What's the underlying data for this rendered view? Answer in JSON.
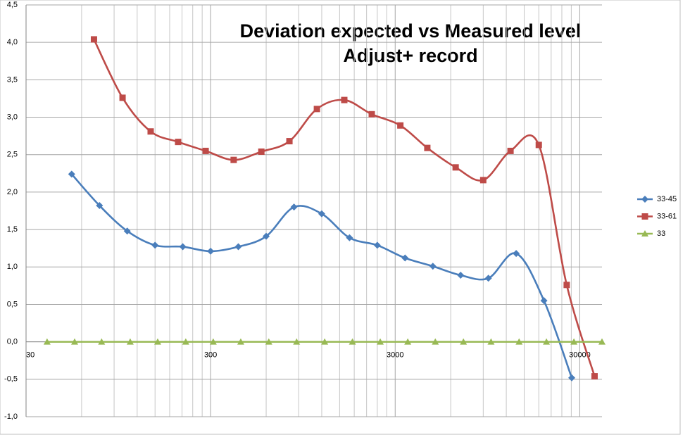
{
  "chart_data": {
    "type": "line",
    "title": [
      "Deviation expected vs Measured level",
      "Adjust+ record"
    ],
    "xscale": "log",
    "xlim": [
      30,
      39600
    ],
    "xticks": [
      30,
      300,
      3000,
      30000
    ],
    "xminor_grid": true,
    "ylim": [
      -1.0,
      4.5
    ],
    "yticks": [
      {
        "value": -1.0,
        "label": "-1,0"
      },
      {
        "value": -0.5,
        "label": "-0,5"
      },
      {
        "value": 0,
        "label": "0,0"
      },
      {
        "value": 0.5,
        "label": "0,5"
      },
      {
        "value": 1.0,
        "label": "1,0"
      },
      {
        "value": 1.5,
        "label": "1,5"
      },
      {
        "value": 2.0,
        "label": "2,0"
      },
      {
        "value": 2.5,
        "label": "2,5"
      },
      {
        "value": 3.0,
        "label": "3,0"
      },
      {
        "value": 3.5,
        "label": "3,5"
      },
      {
        "value": 4.0,
        "label": "4,0"
      },
      {
        "value": 4.5,
        "label": "4,5"
      }
    ],
    "grid": true,
    "smooth": true,
    "legend": "right",
    "series": [
      {
        "name": "33-45",
        "color": "#4a7ebb",
        "marker": "diamond",
        "x": [
          53,
          75,
          106,
          150,
          212,
          300,
          424,
          600,
          849,
          1200,
          1697,
          2400,
          3394,
          4800,
          6788,
          9600,
          13576,
          19200,
          27153
        ],
        "values": [
          2.24,
          1.82,
          1.48,
          1.29,
          1.27,
          1.21,
          1.27,
          1.41,
          1.8,
          1.71,
          1.39,
          1.29,
          1.12,
          1.01,
          0.89,
          0.85,
          1.18,
          0.55,
          -0.48
        ]
      },
      {
        "name": "33-61",
        "color": "#be4b48",
        "marker": "square",
        "x": [
          70,
          100,
          142,
          200,
          282,
          400,
          565,
          802,
          1130,
          1590,
          2240,
          3200,
          4480,
          6380,
          9000,
          12650,
          18000,
          25500,
          36100
        ],
        "values": [
          4.04,
          3.26,
          2.81,
          2.67,
          2.55,
          2.43,
          2.54,
          2.68,
          3.11,
          3.23,
          3.04,
          2.89,
          2.59,
          2.33,
          2.16,
          2.55,
          2.63,
          0.76,
          -0.46
        ]
      },
      {
        "name": "33",
        "color": "#98b954",
        "marker": "triangle",
        "x": [
          39,
          55,
          77,
          110,
          155,
          220,
          310,
          437,
          620,
          877,
          1245,
          1760,
          2490,
          3510,
          4950,
          7030,
          9920,
          14080,
          19800,
          27900,
          39600
        ],
        "values": [
          0,
          0,
          0,
          0,
          0,
          0,
          0,
          0,
          0,
          0,
          0,
          0,
          0,
          0,
          0,
          0,
          0,
          0,
          0,
          0,
          0
        ]
      }
    ]
  }
}
